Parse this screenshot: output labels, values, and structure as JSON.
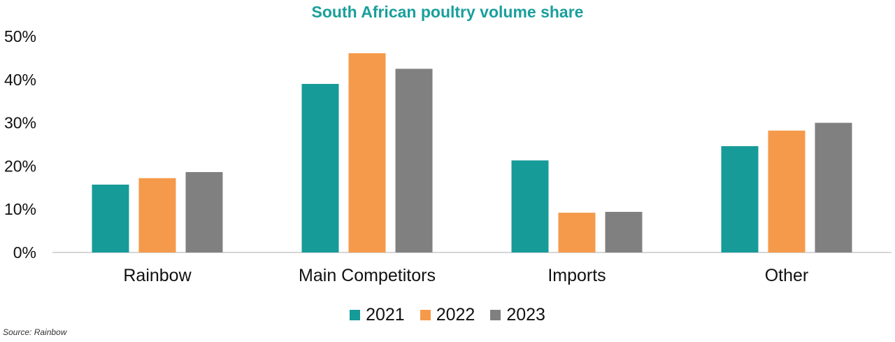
{
  "chart_data": {
    "type": "bar",
    "title": "South African poultry volume share",
    "categories": [
      "Rainbow",
      "Main Competitors",
      "Imports",
      "Other"
    ],
    "series": [
      {
        "name": "2021",
        "color": "#169b99",
        "values": [
          15.7,
          39.0,
          21.3,
          24.6
        ]
      },
      {
        "name": "2022",
        "color": "#f59a4a",
        "values": [
          17.2,
          46.1,
          9.2,
          28.2
        ]
      },
      {
        "name": "2023",
        "color": "#808080",
        "values": [
          18.6,
          42.5,
          9.4,
          30.0
        ]
      }
    ],
    "ylim": [
      0,
      50
    ],
    "yticks": [
      0,
      10,
      20,
      30,
      40,
      50
    ],
    "ytick_labels": [
      "0%",
      "10%",
      "20%",
      "30%",
      "40%",
      "50%"
    ],
    "xlabel": "",
    "ylabel": "",
    "legend_position": "bottom",
    "grid": false
  },
  "source": "Source: Rainbow"
}
